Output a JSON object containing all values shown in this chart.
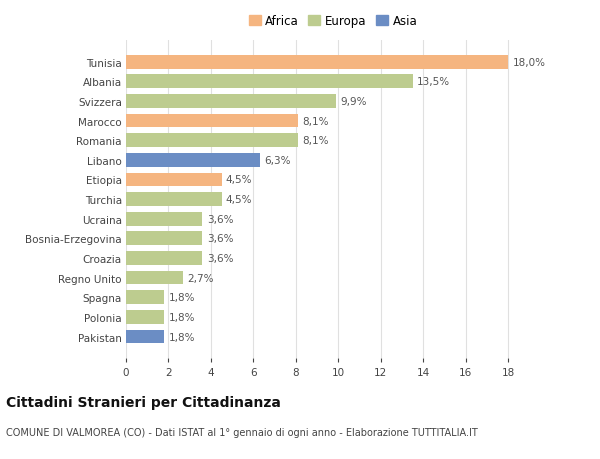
{
  "countries": [
    "Tunisia",
    "Albania",
    "Svizzera",
    "Marocco",
    "Romania",
    "Libano",
    "Etiopia",
    "Turchia",
    "Ucraina",
    "Bosnia-Erzegovina",
    "Croazia",
    "Regno Unito",
    "Spagna",
    "Polonia",
    "Pakistan"
  ],
  "values": [
    18.0,
    13.5,
    9.9,
    8.1,
    8.1,
    6.3,
    4.5,
    4.5,
    3.6,
    3.6,
    3.6,
    2.7,
    1.8,
    1.8,
    1.8
  ],
  "labels": [
    "18,0%",
    "13,5%",
    "9,9%",
    "8,1%",
    "8,1%",
    "6,3%",
    "4,5%",
    "4,5%",
    "3,6%",
    "3,6%",
    "3,6%",
    "2,7%",
    "1,8%",
    "1,8%",
    "1,8%"
  ],
  "continents": [
    "Africa",
    "Europa",
    "Europa",
    "Africa",
    "Europa",
    "Asia",
    "Africa",
    "Europa",
    "Europa",
    "Europa",
    "Europa",
    "Europa",
    "Europa",
    "Europa",
    "Asia"
  ],
  "colors": {
    "Africa": "#F5B580",
    "Europa": "#BDCC8F",
    "Asia": "#6B8DC4"
  },
  "legend_labels": [
    "Africa",
    "Europa",
    "Asia"
  ],
  "legend_colors": [
    "#F5B580",
    "#BDCC8F",
    "#6B8DC4"
  ],
  "xlim": [
    0,
    19.5
  ],
  "xticks": [
    0,
    2,
    4,
    6,
    8,
    10,
    12,
    14,
    16,
    18
  ],
  "title": "Cittadini Stranieri per Cittadinanza",
  "subtitle": "COMUNE DI VALMOREA (CO) - Dati ISTAT al 1° gennaio di ogni anno - Elaborazione TUTTITALIA.IT",
  "bg_color": "#ffffff",
  "plot_bg_color": "#ffffff",
  "grid_color": "#e0e0e0",
  "bar_height": 0.7,
  "label_fontsize": 7.5,
  "tick_fontsize": 7.5,
  "title_fontsize": 10,
  "subtitle_fontsize": 7,
  "legend_fontsize": 8.5
}
